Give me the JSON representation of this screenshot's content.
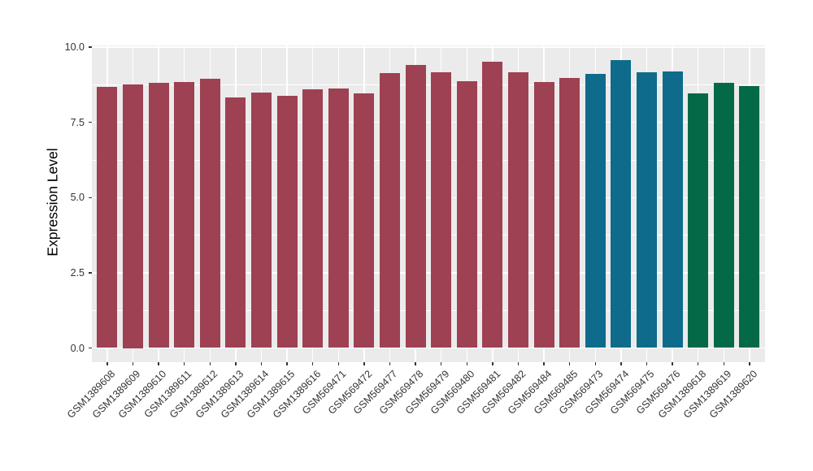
{
  "chart_data": {
    "type": "bar",
    "title": "",
    "xlabel": "",
    "ylabel": "Expression Level",
    "ylim": [
      0,
      10.05
    ],
    "yticks": [
      0,
      2.5,
      5,
      7.5,
      10
    ],
    "ytick_labels": [
      "0.0",
      "2.5",
      "5.0",
      "7.5",
      "10.0"
    ],
    "minor_gridlines": [
      1.25,
      3.75,
      6.25,
      8.75
    ],
    "grid": "on",
    "legend": "none",
    "categories": [
      "GSM1389608",
      "GSM1389609",
      "GSM1389610",
      "GSM1389611",
      "GSM1389612",
      "GSM1389613",
      "GSM1389614",
      "GSM1389615",
      "GSM1389616",
      "GSM569471",
      "GSM569472",
      "GSM569477",
      "GSM569478",
      "GSM569479",
      "GSM569480",
      "GSM569481",
      "GSM569482",
      "GSM569484",
      "GSM569485",
      "GSM569473",
      "GSM569474",
      "GSM569475",
      "GSM569476",
      "GSM1389618",
      "GSM1389619",
      "GSM1389620"
    ],
    "values": [
      8.68,
      8.75,
      8.8,
      8.83,
      8.96,
      8.33,
      8.48,
      8.37,
      8.6,
      8.61,
      8.46,
      9.14,
      9.41,
      9.16,
      8.86,
      9.51,
      9.16,
      8.85,
      8.97,
      9.11,
      9.56,
      9.16,
      9.19,
      8.45,
      8.81,
      8.7
    ],
    "groups": [
      "group1",
      "group1",
      "group1",
      "group1",
      "group1",
      "group1",
      "group1",
      "group1",
      "group1",
      "group1",
      "group1",
      "group1",
      "group1",
      "group1",
      "group1",
      "group1",
      "group1",
      "group1",
      "group1",
      "group2",
      "group2",
      "group2",
      "group2",
      "group3",
      "group3",
      "group3"
    ],
    "group_colors": {
      "group1": "#9E4152",
      "group2": "#0E6B8C",
      "group3": "#036947"
    },
    "panel_background": "#EBEBEB",
    "gridline_color": "#FFFFFF",
    "axis_text_color": "#333333",
    "axis_title_color": "#000000"
  }
}
